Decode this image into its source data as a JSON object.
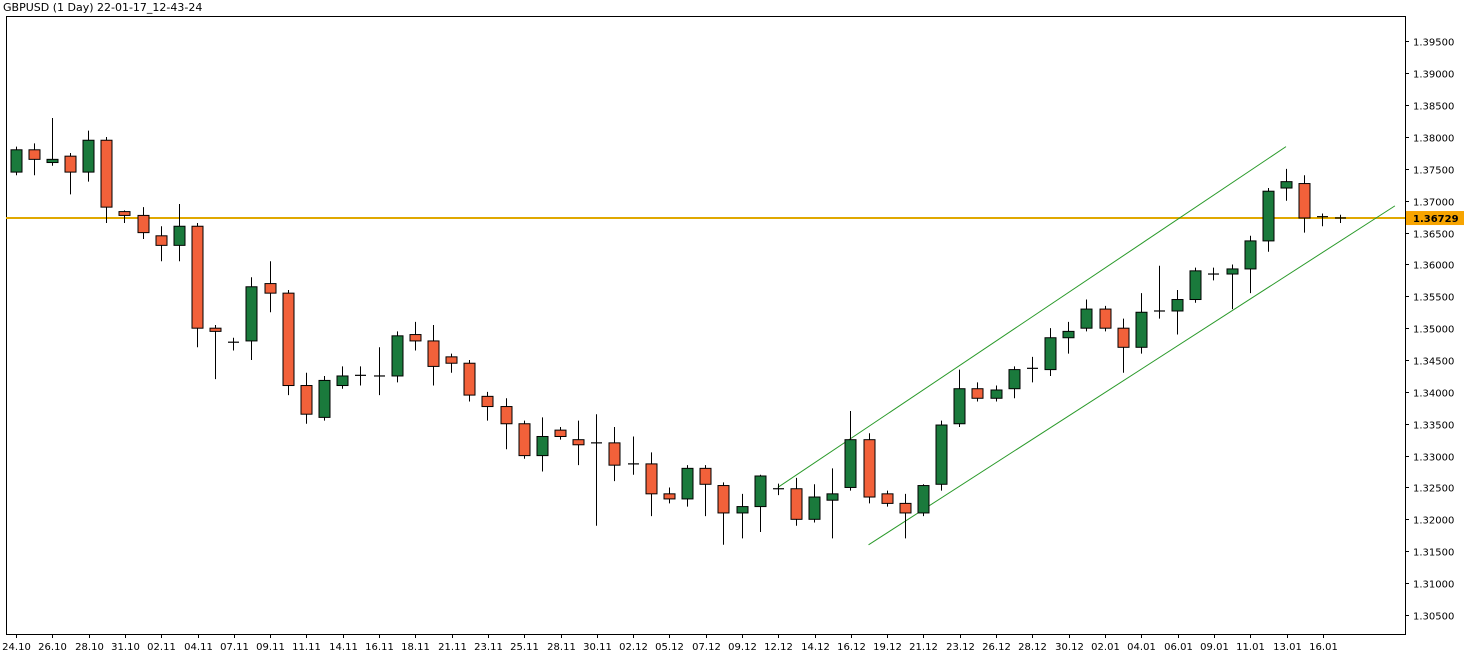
{
  "chart_title": "GBPUSD (1 Day) 22-01-17_12-43-24",
  "colors": {
    "up": "#1a7a3c",
    "down": "#f2613a",
    "wick": "#000000",
    "channel": "#2a9a2a",
    "hline": "#e0a800",
    "price_label_bg": "#f7a400",
    "axis": "#000000",
    "background": "#ffffff"
  },
  "current_price_label": "1.36729",
  "chart_data": {
    "type": "candlestick",
    "title": "GBPUSD (1 Day) 22-01-17_12-43-24",
    "ylim": [
      1.302,
      1.399
    ],
    "yticks": [
      1.305,
      1.31,
      1.315,
      1.32,
      1.325,
      1.33,
      1.335,
      1.34,
      1.345,
      1.35,
      1.355,
      1.36,
      1.365,
      1.37,
      1.375,
      1.38,
      1.385,
      1.39,
      1.395
    ],
    "ytick_labels": [
      "1.30500",
      "1.31000",
      "1.31500",
      "1.32000",
      "1.32500",
      "1.33000",
      "1.33500",
      "1.34000",
      "1.34500",
      "1.35000",
      "1.35500",
      "1.36000",
      "1.36500",
      "1.37000",
      "1.37500",
      "1.38000",
      "1.38500",
      "1.39000",
      "1.39500"
    ],
    "xtick_labels": [
      "24.10",
      "26.10",
      "28.10",
      "31.10",
      "02.11",
      "04.11",
      "07.11",
      "09.11",
      "11.11",
      "14.11",
      "16.11",
      "18.11",
      "21.11",
      "23.11",
      "25.11",
      "28.11",
      "30.11",
      "02.12",
      "05.12",
      "07.12",
      "09.12",
      "12.12",
      "14.12",
      "16.12",
      "19.12",
      "21.12",
      "23.12",
      "26.12",
      "28.12",
      "30.12",
      "02.01",
      "04.01",
      "06.01",
      "09.01",
      "11.01",
      "13.01",
      "16.01"
    ],
    "horizontal_line": 1.36729,
    "channel": {
      "upper": [
        [
          42,
          1.325
        ],
        [
          70,
          1.3785
        ]
      ],
      "lower": [
        [
          47,
          1.316
        ],
        [
          76,
          1.3692
        ]
      ]
    },
    "candles": [
      {
        "o": 1.3745,
        "h": 1.3785,
        "l": 1.374,
        "c": 1.378
      },
      {
        "o": 1.378,
        "h": 1.379,
        "l": 1.374,
        "c": 1.3765
      },
      {
        "o": 1.376,
        "h": 1.383,
        "l": 1.3755,
        "c": 1.3765
      },
      {
        "o": 1.377,
        "h": 1.3775,
        "l": 1.371,
        "c": 1.3745
      },
      {
        "o": 1.3745,
        "h": 1.381,
        "l": 1.373,
        "c": 1.3795
      },
      {
        "o": 1.3795,
        "h": 1.38,
        "l": 1.3665,
        "c": 1.369
      },
      {
        "o": 1.3683,
        "h": 1.3685,
        "l": 1.3665,
        "c": 1.3677
      },
      {
        "o": 1.3677,
        "h": 1.369,
        "l": 1.364,
        "c": 1.365
      },
      {
        "o": 1.3645,
        "h": 1.366,
        "l": 1.3605,
        "c": 1.363
      },
      {
        "o": 1.363,
        "h": 1.3695,
        "l": 1.3605,
        "c": 1.366
      },
      {
        "o": 1.366,
        "h": 1.3665,
        "l": 1.347,
        "c": 1.35
      },
      {
        "o": 1.35,
        "h": 1.3505,
        "l": 1.342,
        "c": 1.3495
      },
      {
        "o": 1.3478,
        "h": 1.3485,
        "l": 1.3465,
        "c": 1.3477
      },
      {
        "o": 1.348,
        "h": 1.358,
        "l": 1.345,
        "c": 1.3565
      },
      {
        "o": 1.357,
        "h": 1.3605,
        "l": 1.3525,
        "c": 1.3555
      },
      {
        "o": 1.3555,
        "h": 1.356,
        "l": 1.3395,
        "c": 1.341
      },
      {
        "o": 1.341,
        "h": 1.343,
        "l": 1.335,
        "c": 1.3365
      },
      {
        "o": 1.336,
        "h": 1.3425,
        "l": 1.3355,
        "c": 1.3418
      },
      {
        "o": 1.341,
        "h": 1.344,
        "l": 1.3405,
        "c": 1.3425
      },
      {
        "o": 1.3424,
        "h": 1.344,
        "l": 1.341,
        "c": 1.3426
      },
      {
        "o": 1.3424,
        "h": 1.347,
        "l": 1.3395,
        "c": 1.3425
      },
      {
        "o": 1.3425,
        "h": 1.3495,
        "l": 1.3415,
        "c": 1.3488
      },
      {
        "o": 1.349,
        "h": 1.351,
        "l": 1.3465,
        "c": 1.348
      },
      {
        "o": 1.348,
        "h": 1.3505,
        "l": 1.341,
        "c": 1.344
      },
      {
        "o": 1.3455,
        "h": 1.346,
        "l": 1.343,
        "c": 1.3445
      },
      {
        "o": 1.3445,
        "h": 1.345,
        "l": 1.3385,
        "c": 1.3395
      },
      {
        "o": 1.3393,
        "h": 1.34,
        "l": 1.3355,
        "c": 1.3377
      },
      {
        "o": 1.3377,
        "h": 1.339,
        "l": 1.331,
        "c": 1.335
      },
      {
        "o": 1.335,
        "h": 1.3355,
        "l": 1.3295,
        "c": 1.33
      },
      {
        "o": 1.33,
        "h": 1.336,
        "l": 1.3275,
        "c": 1.333
      },
      {
        "o": 1.334,
        "h": 1.3345,
        "l": 1.3325,
        "c": 1.333
      },
      {
        "o": 1.3325,
        "h": 1.3355,
        "l": 1.3285,
        "c": 1.3317
      },
      {
        "o": 1.332,
        "h": 1.3365,
        "l": 1.319,
        "c": 1.332
      },
      {
        "o": 1.332,
        "h": 1.3345,
        "l": 1.326,
        "c": 1.3285
      },
      {
        "o": 1.3287,
        "h": 1.333,
        "l": 1.327,
        "c": 1.3287
      },
      {
        "o": 1.3287,
        "h": 1.3305,
        "l": 1.3205,
        "c": 1.324
      },
      {
        "o": 1.324,
        "h": 1.325,
        "l": 1.3225,
        "c": 1.3232
      },
      {
        "o": 1.3232,
        "h": 1.3285,
        "l": 1.322,
        "c": 1.328
      },
      {
        "o": 1.328,
        "h": 1.3285,
        "l": 1.3205,
        "c": 1.3255
      },
      {
        "o": 1.3253,
        "h": 1.3258,
        "l": 1.316,
        "c": 1.321
      },
      {
        "o": 1.321,
        "h": 1.324,
        "l": 1.317,
        "c": 1.322
      },
      {
        "o": 1.322,
        "h": 1.327,
        "l": 1.318,
        "c": 1.3268
      },
      {
        "o": 1.3248,
        "h": 1.3256,
        "l": 1.3238,
        "c": 1.3248
      },
      {
        "o": 1.3248,
        "h": 1.3265,
        "l": 1.319,
        "c": 1.32
      },
      {
        "o": 1.32,
        "h": 1.3255,
        "l": 1.3195,
        "c": 1.3235
      },
      {
        "o": 1.323,
        "h": 1.328,
        "l": 1.317,
        "c": 1.324
      },
      {
        "o": 1.325,
        "h": 1.337,
        "l": 1.3245,
        "c": 1.3325
      },
      {
        "o": 1.3325,
        "h": 1.3335,
        "l": 1.3225,
        "c": 1.3235
      },
      {
        "o": 1.324,
        "h": 1.3245,
        "l": 1.322,
        "c": 1.3225
      },
      {
        "o": 1.3225,
        "h": 1.324,
        "l": 1.317,
        "c": 1.321
      },
      {
        "o": 1.321,
        "h": 1.3255,
        "l": 1.3205,
        "c": 1.3253
      },
      {
        "o": 1.3255,
        "h": 1.3355,
        "l": 1.3245,
        "c": 1.3348
      },
      {
        "o": 1.335,
        "h": 1.3435,
        "l": 1.3345,
        "c": 1.3405
      },
      {
        "o": 1.3405,
        "h": 1.3415,
        "l": 1.3385,
        "c": 1.339
      },
      {
        "o": 1.339,
        "h": 1.341,
        "l": 1.3385,
        "c": 1.3403
      },
      {
        "o": 1.3405,
        "h": 1.344,
        "l": 1.339,
        "c": 1.3435
      },
      {
        "o": 1.3435,
        "h": 1.3455,
        "l": 1.3415,
        "c": 1.3437
      },
      {
        "o": 1.3435,
        "h": 1.35,
        "l": 1.3425,
        "c": 1.3485
      },
      {
        "o": 1.3485,
        "h": 1.351,
        "l": 1.346,
        "c": 1.3495
      },
      {
        "o": 1.35,
        "h": 1.3545,
        "l": 1.3495,
        "c": 1.353
      },
      {
        "o": 1.353,
        "h": 1.3535,
        "l": 1.3495,
        "c": 1.35
      },
      {
        "o": 1.35,
        "h": 1.3515,
        "l": 1.343,
        "c": 1.347
      },
      {
        "o": 1.347,
        "h": 1.3555,
        "l": 1.346,
        "c": 1.3525
      },
      {
        "o": 1.3525,
        "h": 1.3598,
        "l": 1.3515,
        "c": 1.3527
      },
      {
        "o": 1.3527,
        "h": 1.356,
        "l": 1.349,
        "c": 1.3545
      },
      {
        "o": 1.3545,
        "h": 1.3595,
        "l": 1.354,
        "c": 1.359
      },
      {
        "o": 1.3585,
        "h": 1.3595,
        "l": 1.3575,
        "c": 1.3585
      },
      {
        "o": 1.3585,
        "h": 1.36,
        "l": 1.353,
        "c": 1.3593
      },
      {
        "o": 1.3593,
        "h": 1.3645,
        "l": 1.3555,
        "c": 1.3637
      },
      {
        "o": 1.3637,
        "h": 1.372,
        "l": 1.362,
        "c": 1.3715
      },
      {
        "o": 1.372,
        "h": 1.375,
        "l": 1.37,
        "c": 1.373
      },
      {
        "o": 1.3727,
        "h": 1.374,
        "l": 1.365,
        "c": 1.3673
      },
      {
        "o": 1.3675,
        "h": 1.368,
        "l": 1.366,
        "c": 1.3673
      },
      {
        "o": 1.3673,
        "h": 1.3678,
        "l": 1.3665,
        "c": 1.3672
      }
    ]
  }
}
